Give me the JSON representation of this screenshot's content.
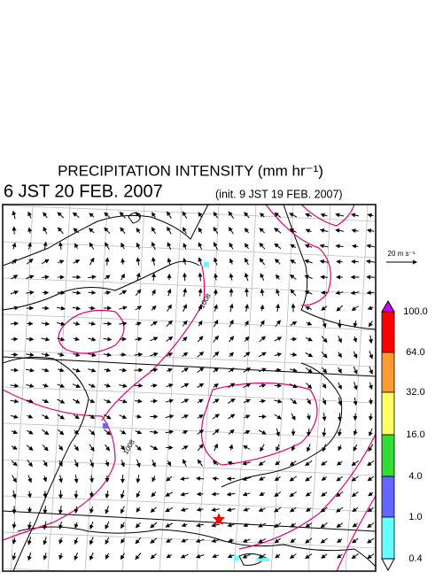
{
  "header": {
    "title": "PRECIPITATION INTENSITY (mm hr⁻¹)",
    "valid_time": "6 JST 20 FEB. 2007",
    "init_time": "(init. 9 JST 19 FEB. 2007)"
  },
  "wind_scale": {
    "label": "20 m s⁻¹"
  },
  "isobar_labels": [
    "1008",
    "1008"
  ],
  "colorbar": {
    "labels": [
      "100.0",
      "64.0",
      "32.0",
      "16.0",
      "4.0",
      "1.0",
      "0.4"
    ],
    "colors": [
      "#ff0000",
      "#ff9933",
      "#ffff66",
      "#33dd33",
      "#6666ff",
      "#66ffff"
    ],
    "over_color": "#cc00ff",
    "under_color": "#ffffff"
  }
}
